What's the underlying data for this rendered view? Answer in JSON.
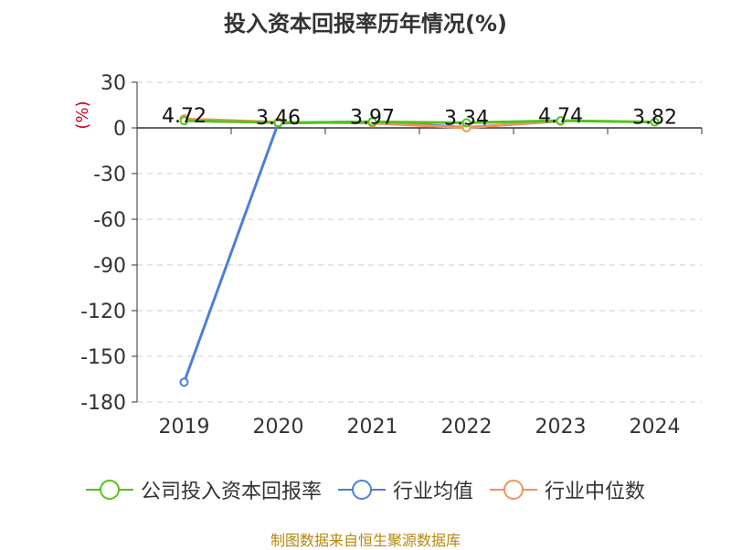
{
  "title": "投入资本回报率历年情况(%)",
  "unit": "(%)",
  "source": "制图数据来自恒生聚源数据库",
  "chart_data": {
    "type": "line",
    "title": "投入资本回报率历年情况(%)",
    "categories": [
      "2019",
      "2020",
      "2021",
      "2022",
      "2023",
      "2024"
    ],
    "ylim": [
      -180,
      30
    ],
    "yticks": [
      30,
      0,
      -30,
      -60,
      -90,
      -120,
      -150,
      -180
    ],
    "grid": true,
    "legend_position": "bottom",
    "series": [
      {
        "name": "公司投入资本回报率",
        "color": "#52c41a",
        "values": [
          4.72,
          3.46,
          3.97,
          3.34,
          4.74,
          3.82
        ],
        "labels": [
          "4.72",
          "3.46",
          "3.97",
          "3.34",
          "4.74",
          "3.82"
        ]
      },
      {
        "name": "行业均值",
        "color": "#4a7fdc",
        "values": [
          -167,
          3.2,
          4.1,
          0.3,
          4.5,
          null
        ]
      },
      {
        "name": "行业中位数",
        "color": "#f0935a",
        "values": [
          5.9,
          3.8,
          3.2,
          0.1,
          4.6,
          null
        ]
      }
    ]
  }
}
